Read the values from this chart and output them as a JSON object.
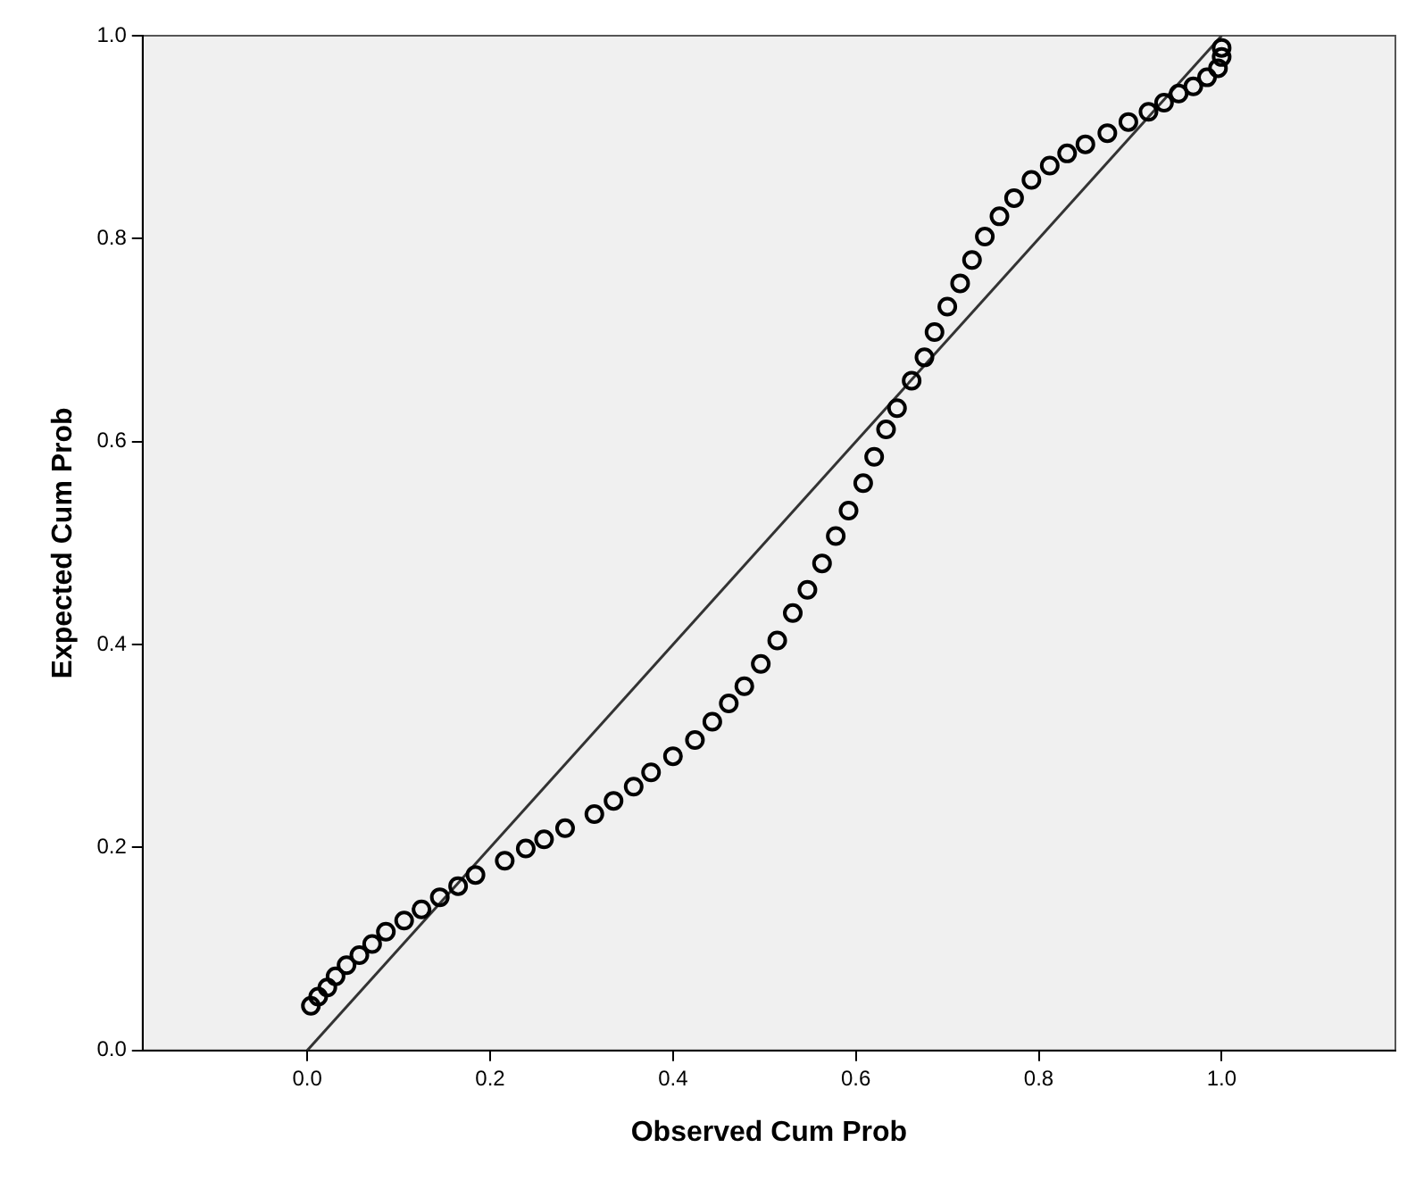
{
  "chart_data": {
    "type": "scatter",
    "xlabel": "Observed Cum Prob",
    "ylabel": "Expected Cum Prob",
    "xlim": [
      -0.18,
      1.19
    ],
    "ylim": [
      0,
      1
    ],
    "xticks": [
      {
        "value": 0,
        "label": "0.0"
      },
      {
        "value": 0.2,
        "label": "0.2"
      },
      {
        "value": 0.4,
        "label": "0.4"
      },
      {
        "value": 0.6,
        "label": "0.6"
      },
      {
        "value": 0.8,
        "label": "0.8"
      },
      {
        "value": 1,
        "label": "1.0"
      }
    ],
    "yticks": [
      {
        "value": 0,
        "label": "0.0"
      },
      {
        "value": 0.2,
        "label": "0.2"
      },
      {
        "value": 0.4,
        "label": "0.4"
      },
      {
        "value": 0.6,
        "label": "0.6"
      },
      {
        "value": 0.8,
        "label": "0.8"
      },
      {
        "value": 1,
        "label": "1.0"
      }
    ],
    "grid": false,
    "legend": false,
    "marker": "circle",
    "series": [
      {
        "color": "#000000",
        "x": [
          0.004,
          0.012,
          0.022,
          0.031,
          0.043,
          0.057,
          0.071,
          0.086,
          0.106,
          0.125,
          0.145,
          0.165,
          0.184,
          0.216,
          0.239,
          0.259,
          0.282,
          0.314,
          0.335,
          0.357,
          0.376,
          0.4,
          0.424,
          0.443,
          0.461,
          0.478,
          0.496,
          0.514,
          0.531,
          0.547,
          0.563,
          0.578,
          0.592,
          0.608,
          0.62,
          0.633,
          0.645,
          0.661,
          0.675,
          0.686,
          0.7,
          0.714,
          0.727,
          0.741,
          0.757,
          0.773,
          0.792,
          0.812,
          0.831,
          0.851,
          0.875,
          0.898,
          0.92,
          0.937,
          0.953,
          0.969,
          0.984,
          0.996,
          1.0,
          1.0
        ],
        "values": [
          0.044,
          0.053,
          0.062,
          0.073,
          0.084,
          0.094,
          0.105,
          0.117,
          0.128,
          0.139,
          0.151,
          0.162,
          0.173,
          0.187,
          0.199,
          0.208,
          0.219,
          0.233,
          0.246,
          0.26,
          0.274,
          0.29,
          0.306,
          0.324,
          0.342,
          0.359,
          0.381,
          0.404,
          0.431,
          0.454,
          0.48,
          0.507,
          0.532,
          0.559,
          0.585,
          0.612,
          0.633,
          0.66,
          0.683,
          0.708,
          0.733,
          0.756,
          0.779,
          0.802,
          0.822,
          0.84,
          0.858,
          0.872,
          0.884,
          0.893,
          0.904,
          0.915,
          0.925,
          0.934,
          0.943,
          0.95,
          0.959,
          0.968,
          0.979,
          0.988
        ]
      },
      {
        "type": "line",
        "color": "#333333",
        "x": [
          0,
          1
        ],
        "values": [
          0,
          1
        ],
        "marker": "none"
      }
    ]
  }
}
